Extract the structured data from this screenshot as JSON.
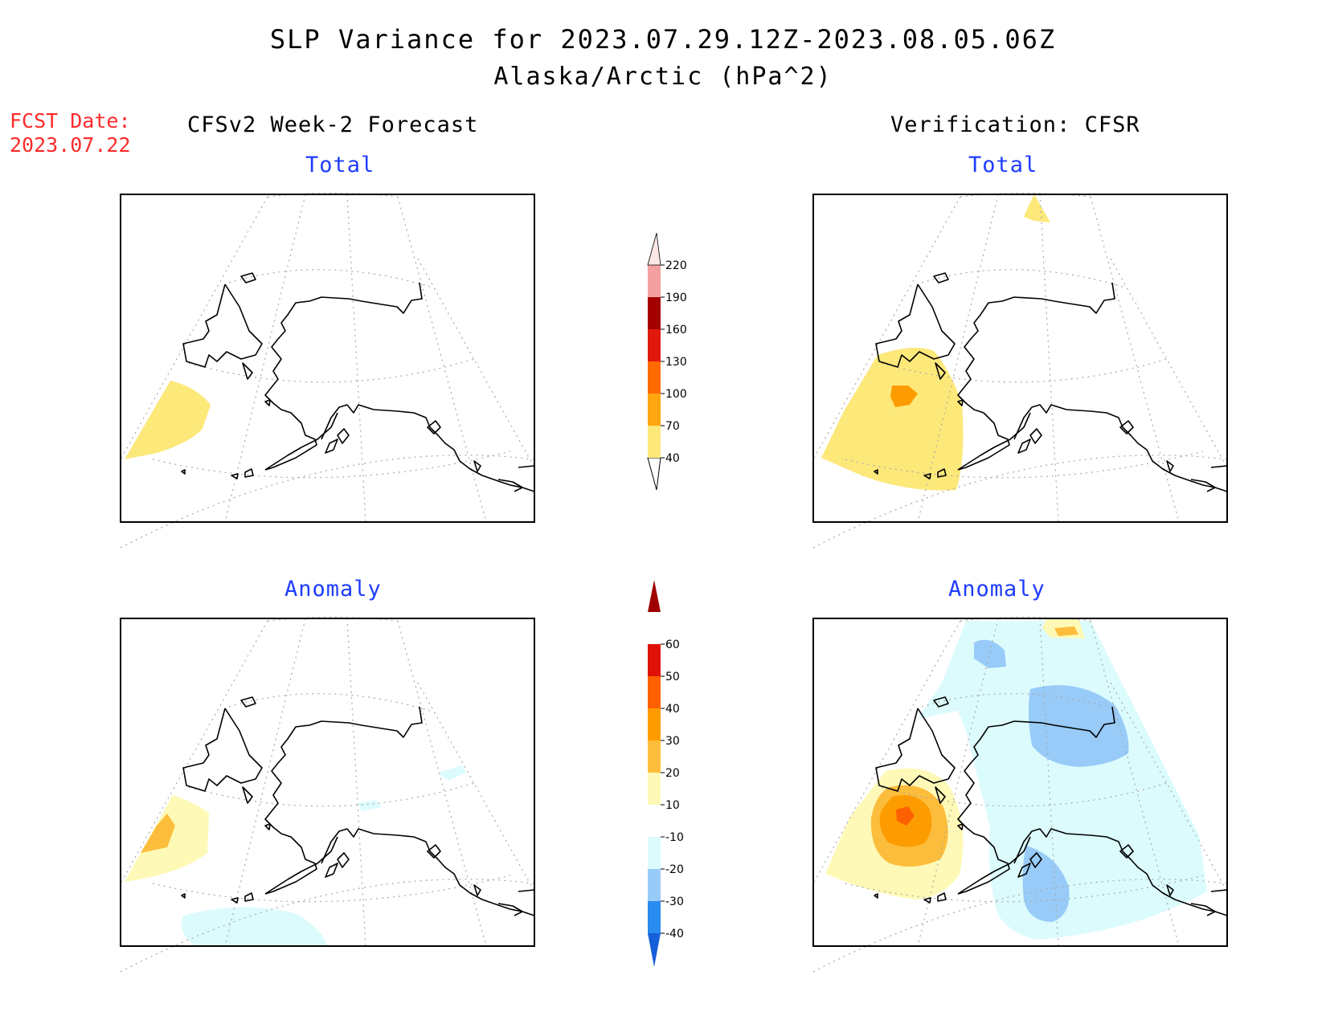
{
  "title": "SLP Variance for 2023.07.29.12Z-2023.08.05.06Z",
  "subtitle": "Alaska/Arctic (hPa^2)",
  "fcst_date": {
    "label": "FCST Date:",
    "value": "2023.07.22"
  },
  "columns": {
    "left": "CFSv2 Week-2 Forecast",
    "right": "Verification: CFSR"
  },
  "panels": {
    "forecast_total": "Total",
    "verification_total": "Total",
    "forecast_anomaly": "Anomaly",
    "verification_anomaly": "Anomaly"
  },
  "colorbars": {
    "total": {
      "labels": [
        "40",
        "70",
        "100",
        "130",
        "160",
        "190",
        "220"
      ],
      "colors": [
        "#fde87a",
        "#fda60f",
        "#fd6a00",
        "#e0180d",
        "#a40000",
        "#f4a0a0",
        "#fde6e6"
      ]
    },
    "anomaly": {
      "labels": [
        "-40",
        "-30",
        "-20",
        "-10",
        "10",
        "20",
        "30",
        "40",
        "50",
        "60"
      ],
      "colors": [
        "#1560d8",
        "#2a8bf0",
        "#98cbf8",
        "#dcfbfd",
        "#ffffff",
        "#fef9b6",
        "#fdbd3c",
        "#fd9c00",
        "#fd6000",
        "#e01208",
        "#a00000"
      ]
    }
  }
}
